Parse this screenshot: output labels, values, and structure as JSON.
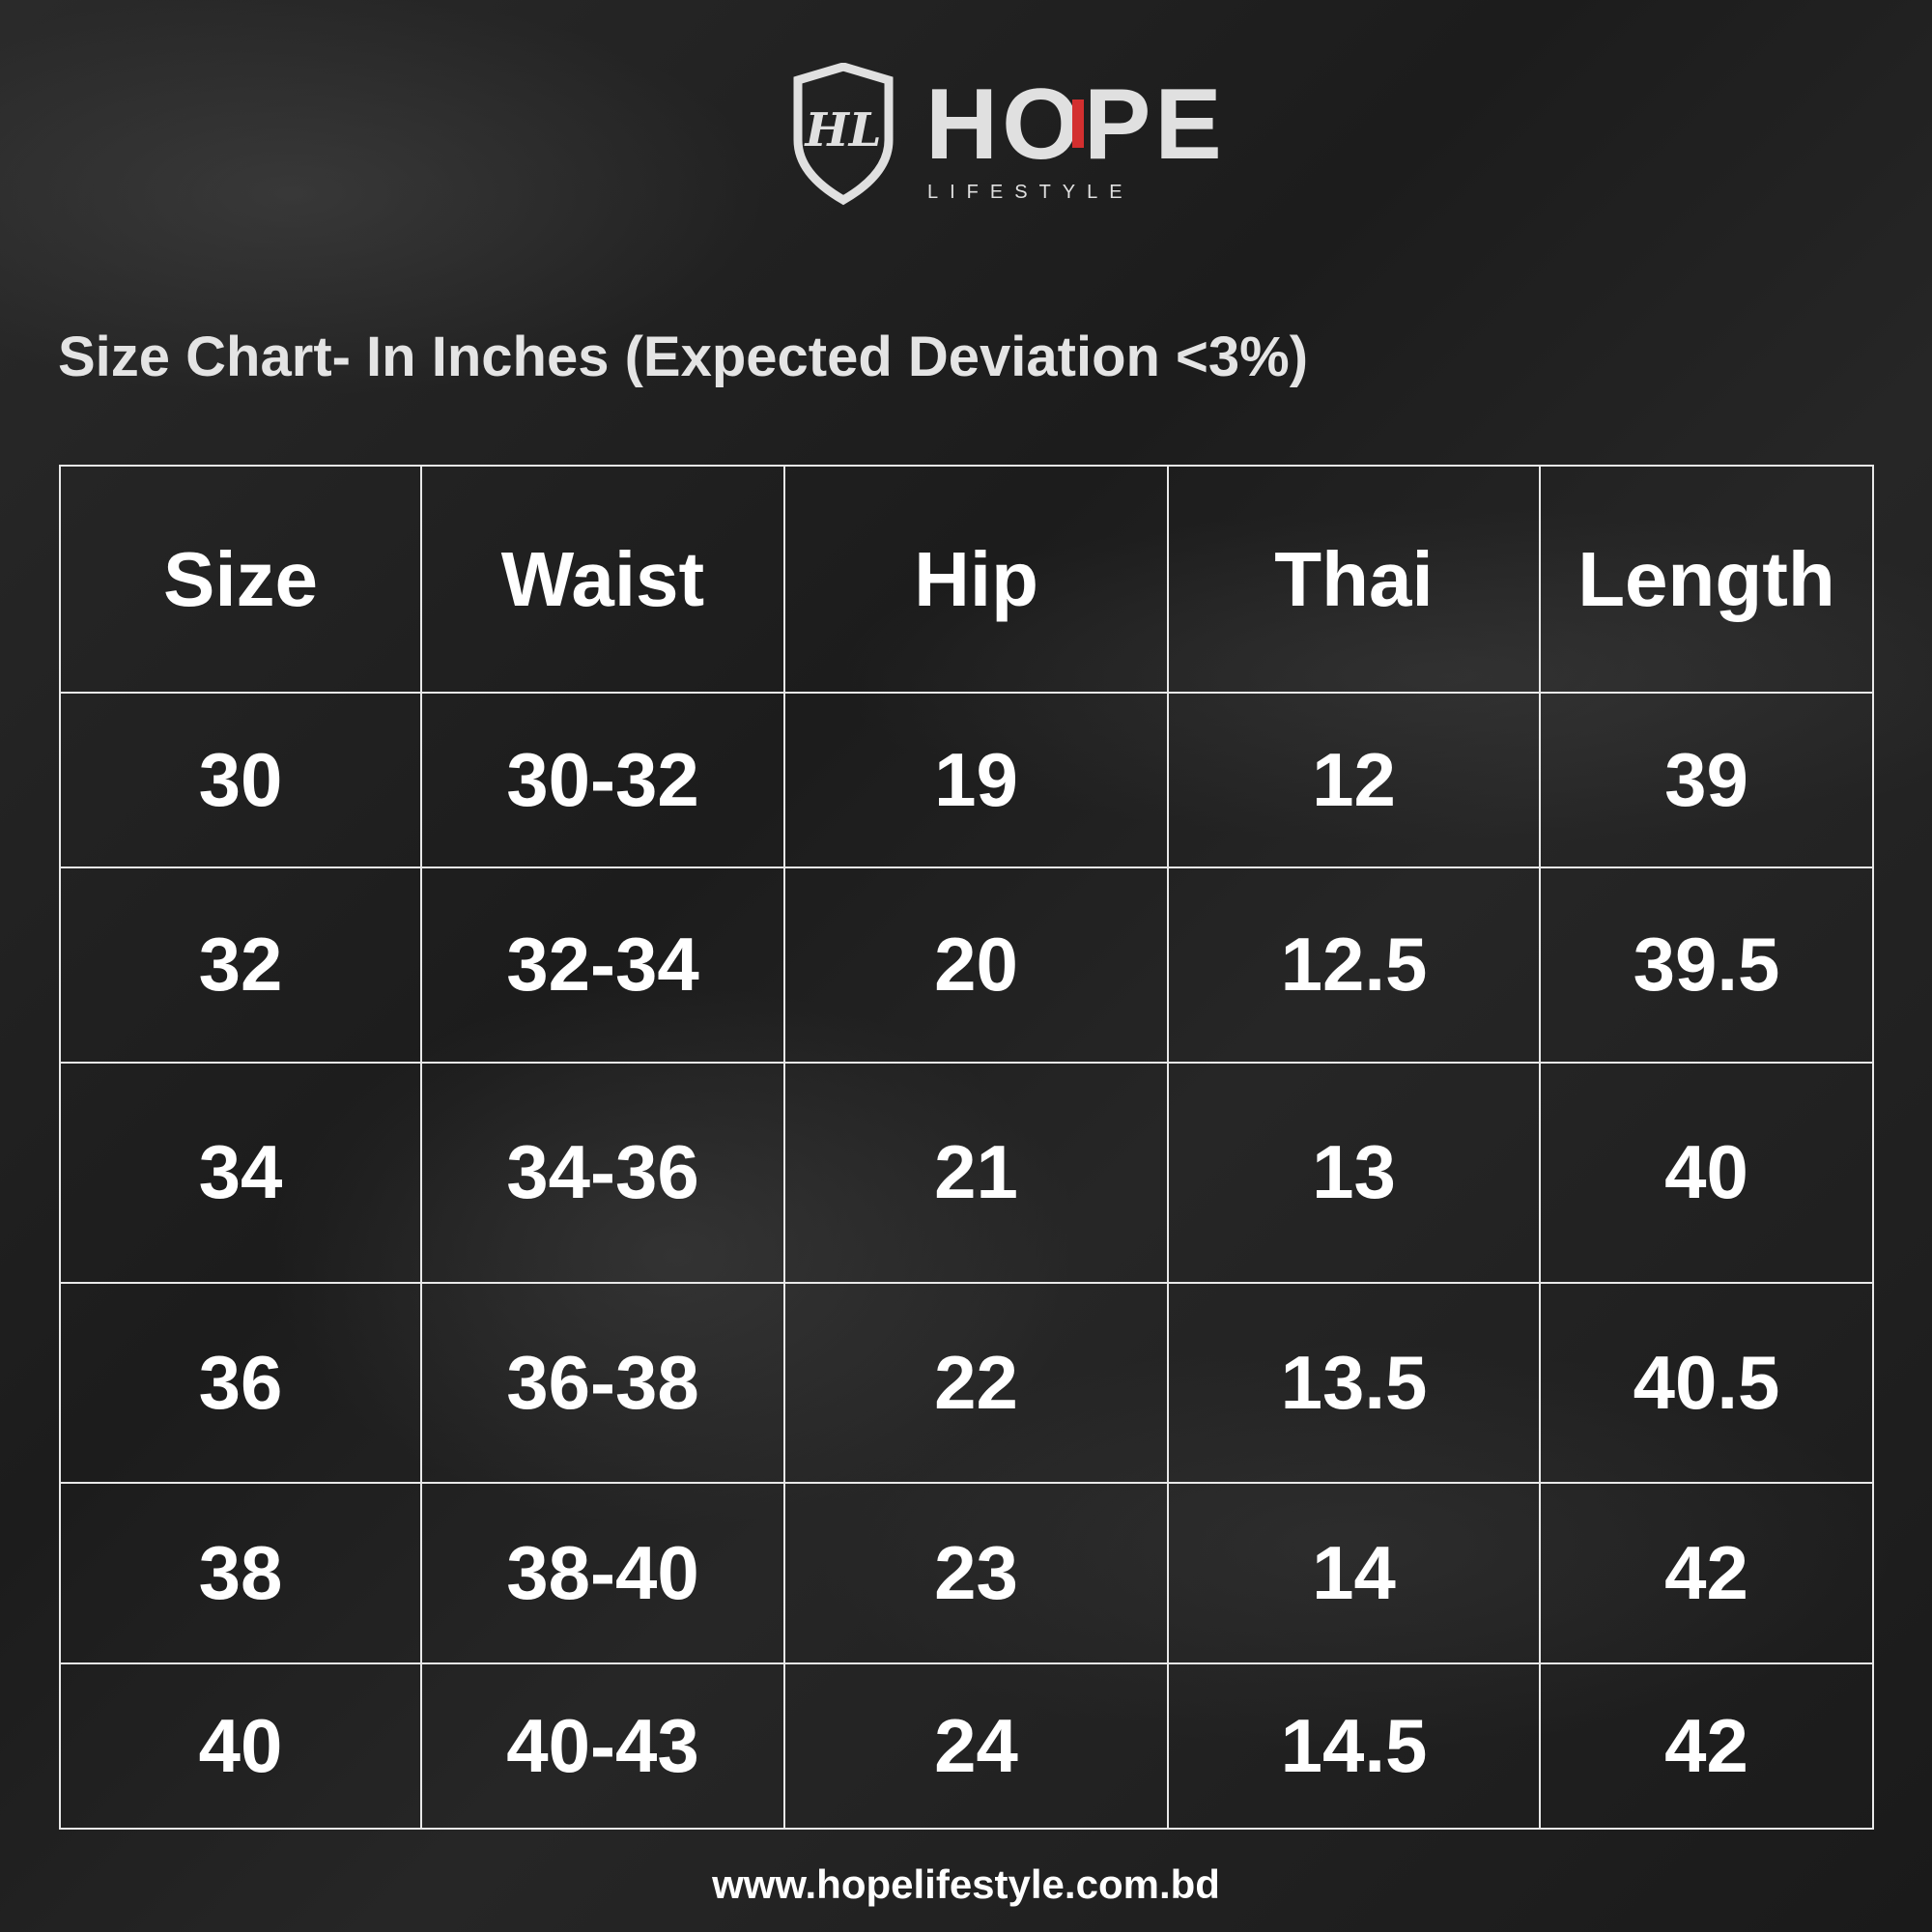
{
  "logo": {
    "brand": "HOPE",
    "tagline": "LIFESTYLE",
    "monogram": "HL",
    "accent_color": "#d32f2f"
  },
  "title": "Size Chart- In Inches (Expected Deviation <3%)",
  "table": {
    "headers": [
      "Size",
      "Waist",
      "Hip",
      "Thai",
      "Length"
    ],
    "rows": [
      [
        "30",
        "30-32",
        "19",
        "12",
        "39"
      ],
      [
        "32",
        "32-34",
        "20",
        "12.5",
        "39.5"
      ],
      [
        "34",
        "34-36",
        "21",
        "13",
        "40"
      ],
      [
        "36",
        "36-38",
        "22",
        "13.5",
        "40.5"
      ],
      [
        "38",
        "38-40",
        "23",
        "14",
        "42"
      ],
      [
        "40",
        "40-43",
        "24",
        "14.5",
        "42"
      ]
    ]
  },
  "footer": {
    "url": "www.hopelifestyle.com.bd"
  }
}
